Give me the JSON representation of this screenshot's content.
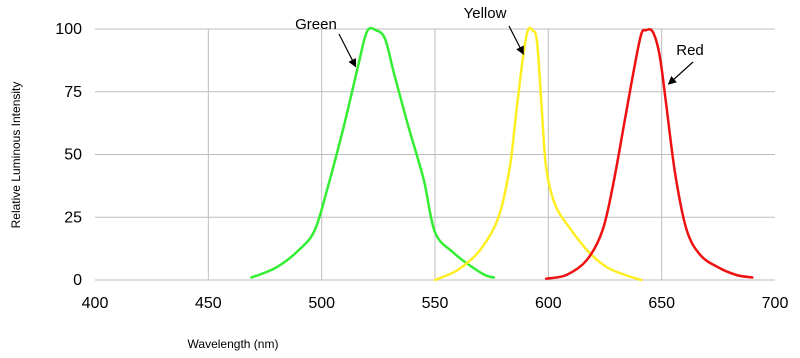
{
  "chart_data": {
    "type": "line",
    "title": "",
    "xlabel": "Wavelength (nm)",
    "ylabel": "Relative Luminous Intensity",
    "xlim": [
      400,
      700
    ],
    "ylim": [
      0,
      100
    ],
    "xticks": [
      400,
      450,
      500,
      550,
      600,
      650,
      700
    ],
    "yticks": [
      0,
      25,
      50,
      75,
      100
    ],
    "grid": true,
    "legend": "none",
    "series": [
      {
        "name": "Green",
        "color": "#33ee33",
        "x": [
          469,
          480,
          490,
          497,
          503,
          510,
          516,
          520,
          524,
          528,
          532,
          538,
          545,
          550,
          558,
          565,
          572,
          576
        ],
        "y": [
          1,
          5,
          12,
          20,
          38,
          62,
          85,
          99,
          99.5,
          96,
          82,
          62,
          40,
          19,
          11,
          6,
          2,
          1
        ]
      },
      {
        "name": "Yellow",
        "color": "#ffee22",
        "x": [
          550,
          560,
          570,
          578,
          583,
          586,
          589,
          591,
          593,
          595,
          597,
          599,
          603,
          610,
          618,
          626,
          634,
          641
        ],
        "y": [
          0,
          4,
          12,
          25,
          45,
          68,
          90,
          99.5,
          99.5,
          95,
          70,
          45,
          30,
          20,
          11,
          5,
          2,
          0
        ]
      },
      {
        "name": "Red",
        "color": "#ee1111",
        "x": [
          599,
          608,
          617,
          624,
          629,
          634,
          638,
          641,
          643,
          646,
          649,
          652,
          656,
          661,
          667,
          675,
          683,
          690
        ],
        "y": [
          0.5,
          2,
          8,
          20,
          40,
          65,
          85,
          98,
          99.5,
          99,
          90,
          70,
          42,
          20,
          10,
          5,
          2,
          1
        ]
      }
    ],
    "annotations": [
      {
        "text": "Green",
        "series": "Green",
        "arrow_to": [
          515,
          85
        ]
      },
      {
        "text": "Yellow",
        "series": "Yellow",
        "arrow_to": [
          589,
          90
        ]
      },
      {
        "text": "Red",
        "series": "Red",
        "arrow_to": [
          653,
          78
        ]
      }
    ]
  }
}
